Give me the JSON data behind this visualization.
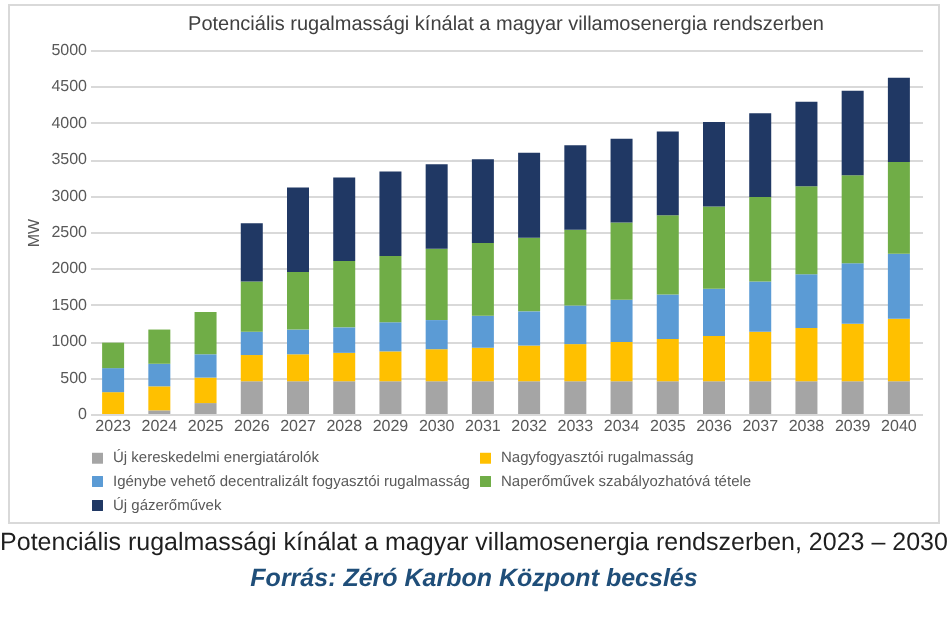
{
  "chart_data": {
    "type": "bar",
    "title": "Potenciális rugalmassági kínálat a magyar villamosenergia rendszerben",
    "ylabel": "MW",
    "stacked": true,
    "grid": "y",
    "legend": "bottom",
    "categories": [
      "2023",
      "2024",
      "2025",
      "2026",
      "2027",
      "2028",
      "2029",
      "2030",
      "2031",
      "2032",
      "2033",
      "2034",
      "2035",
      "2036",
      "2037",
      "2038",
      "2039",
      "2040"
    ],
    "ylim": [
      0,
      5000
    ],
    "yticks": [
      0,
      500,
      1000,
      1500,
      2000,
      2500,
      3000,
      3500,
      4000,
      4500,
      5000
    ],
    "series": [
      {
        "name": "Új kereskedelmi energiatárolók",
        "color": "#a5a5a5",
        "values": [
          0,
          50,
          150,
          450,
          450,
          450,
          450,
          450,
          450,
          450,
          450,
          450,
          450,
          450,
          450,
          450,
          450,
          450
        ]
      },
      {
        "name": "Nagyfogyasztói rugalmasság",
        "color": "#ffc000",
        "values": [
          300,
          330,
          350,
          360,
          370,
          390,
          410,
          440,
          460,
          490,
          510,
          540,
          580,
          620,
          680,
          730,
          790,
          860
        ]
      },
      {
        "name": "Igénybe vehető decentralizált fogyasztói rugalmasság",
        "color": "#5b9bd5",
        "values": [
          330,
          310,
          320,
          320,
          340,
          350,
          400,
          400,
          440,
          470,
          530,
          580,
          610,
          650,
          690,
          740,
          830,
          890
        ]
      },
      {
        "name": "Naperőművek szabályozhatóvá tétele",
        "color": "#70ad47",
        "values": [
          350,
          470,
          580,
          690,
          790,
          910,
          910,
          980,
          1000,
          1010,
          1040,
          1060,
          1090,
          1130,
          1160,
          1210,
          1210,
          1260
        ]
      },
      {
        "name": "Új gázerőművek",
        "color": "#203864",
        "values": [
          0,
          0,
          0,
          800,
          1160,
          1150,
          1160,
          1160,
          1150,
          1170,
          1160,
          1150,
          1150,
          1160,
          1150,
          1160,
          1160,
          1160
        ]
      }
    ],
    "annotations": [
      "Potenciális rugalmassági kínálat a magyar villamosenergia rendszerben, 2023 – 2030",
      "Forrás: Zéró Karbon Központ becslés"
    ]
  }
}
